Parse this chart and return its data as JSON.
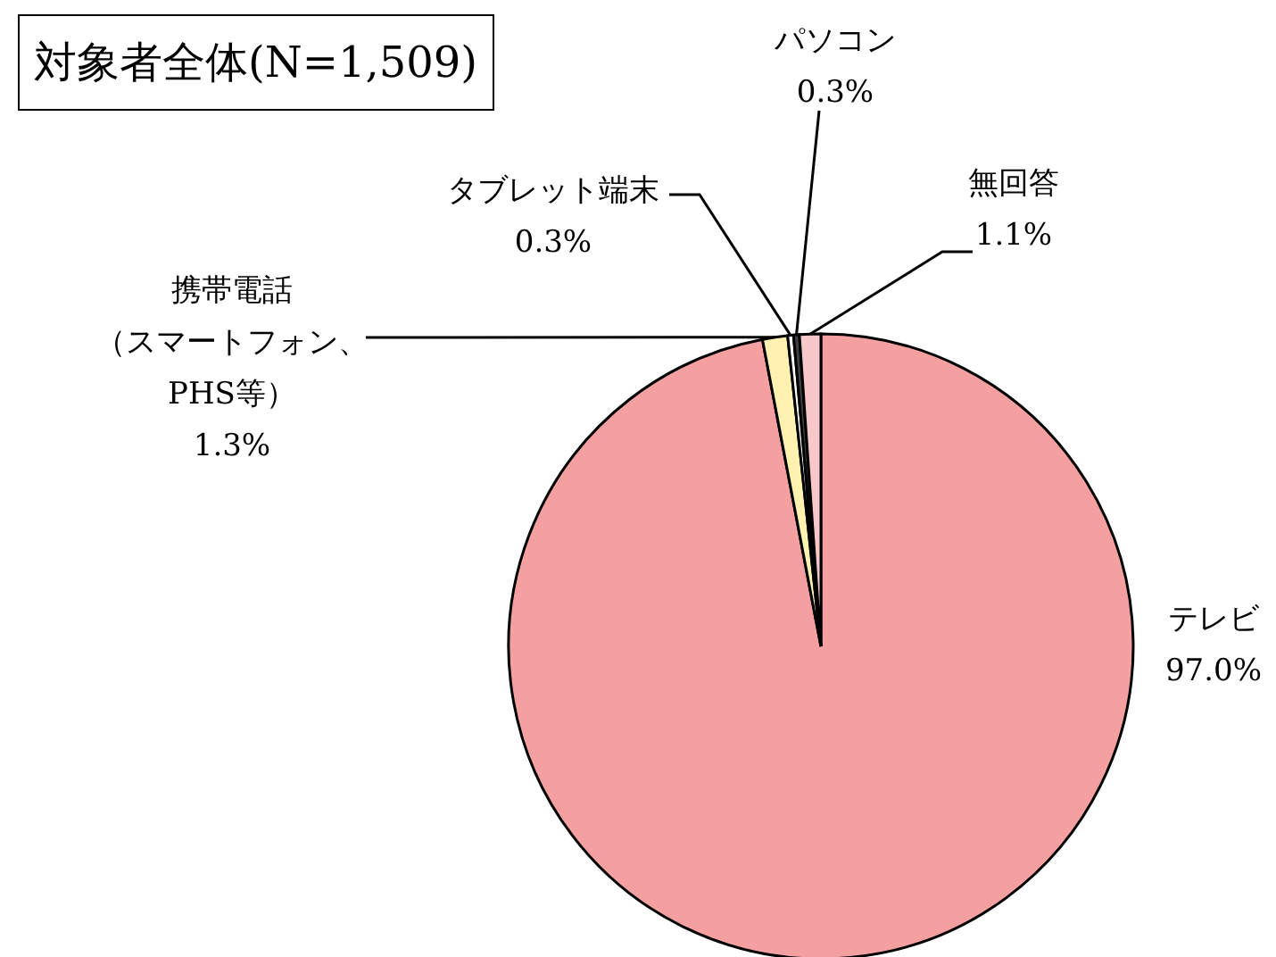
{
  "chart_data": {
    "type": "pie",
    "title": "対象者全体(N=1,509)",
    "categories": [
      "テレビ",
      "携帯電話（スマートフォン、PHS等）",
      "タブレット端末",
      "パソコン",
      "無回答"
    ],
    "values": [
      97.0,
      1.3,
      0.3,
      0.3,
      1.1
    ],
    "colors": [
      "#f4a0a0",
      "#fff2b0",
      "#ffffff",
      "#404040",
      "#f8c8c8"
    ],
    "value_labels": [
      "97.0%",
      "1.3%",
      "0.3%",
      "0.3%",
      "1.1%"
    ],
    "legend": false
  }
}
